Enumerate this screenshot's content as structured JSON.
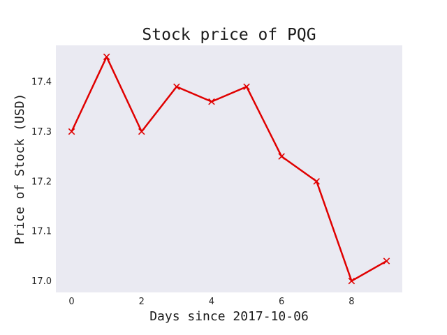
{
  "chart_data": {
    "type": "line",
    "title": "Stock price of PQG",
    "xlabel": "Days since 2017-10-06",
    "ylabel": "Price of Stock (USD)",
    "x": [
      0,
      1,
      2,
      3,
      4,
      5,
      6,
      7,
      8,
      9
    ],
    "series": [
      {
        "values": [
          17.3,
          17.45,
          17.3,
          17.39,
          17.36,
          17.39,
          17.25,
          17.2,
          17.0,
          17.04
        ],
        "color": "#e00000",
        "marker": "x"
      }
    ],
    "xticks": [
      0,
      2,
      4,
      6,
      8
    ],
    "xtick_labels": [
      "0",
      "2",
      "4",
      "6",
      "8"
    ],
    "yticks": [
      17.0,
      17.1,
      17.2,
      17.3,
      17.4
    ],
    "ytick_labels": [
      "17.0",
      "17.1",
      "17.2",
      "17.3",
      "17.4"
    ],
    "xlim": [
      -0.45,
      9.45
    ],
    "ylim": [
      16.977,
      17.473
    ],
    "grid": false,
    "background_color": "#eaeaf2"
  }
}
